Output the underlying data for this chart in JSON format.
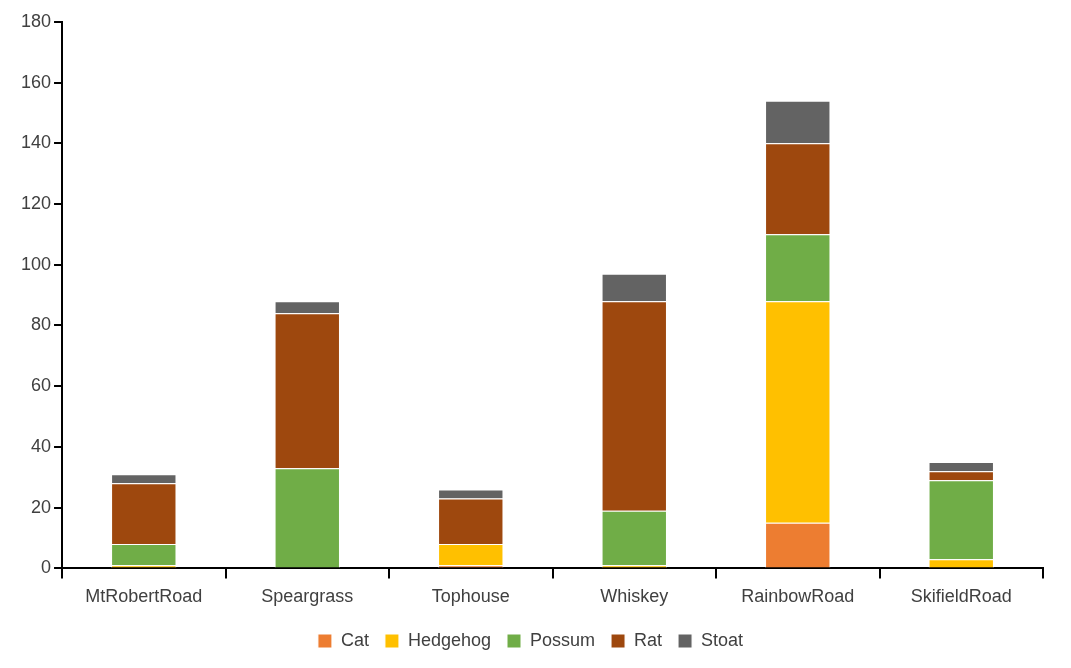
{
  "chart_data": {
    "type": "bar",
    "stacked": true,
    "categories": [
      "MtRobertRoad",
      "Speargrass",
      "Tophouse",
      "Whiskey",
      "RainbowRoad",
      "SkifieldRoad"
    ],
    "series": [
      {
        "name": "Cat",
        "color": "#ed7d31",
        "values": [
          0,
          0,
          1,
          0,
          15,
          0
        ]
      },
      {
        "name": "Hedgehog",
        "color": "#ffc000",
        "values": [
          1,
          0,
          7,
          1,
          73,
          3
        ]
      },
      {
        "name": "Possum",
        "color": "#70ad47",
        "values": [
          7,
          33,
          0,
          18,
          22,
          26
        ]
      },
      {
        "name": "Rat",
        "color": "#9e480e",
        "values": [
          20,
          51,
          15,
          69,
          30,
          3
        ]
      },
      {
        "name": "Stoat",
        "color": "#636363",
        "values": [
          3,
          4,
          3,
          9,
          14,
          3
        ]
      }
    ],
    "ylim": [
      0,
      180
    ],
    "yticks": [
      0,
      20,
      40,
      60,
      80,
      100,
      120,
      140,
      160,
      180
    ],
    "grid": false,
    "legend": "bottom"
  }
}
